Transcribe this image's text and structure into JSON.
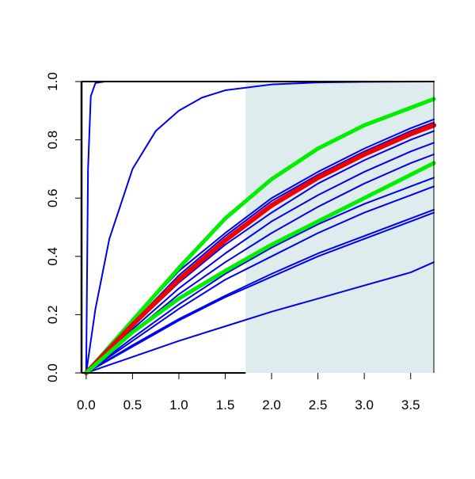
{
  "chart_data": {
    "type": "line",
    "title": "",
    "xlabel": "",
    "ylabel": "",
    "xlim": [
      -0.05,
      3.75
    ],
    "ylim": [
      0,
      1
    ],
    "x_ticks": [
      0,
      0.5,
      1,
      1.5,
      2,
      2.5,
      3,
      3.5
    ],
    "x_tick_labels": [
      "0.0",
      "0.5",
      "1.0",
      "1.5",
      "2.0",
      "2.5",
      "3.0",
      "3.5"
    ],
    "y_ticks": [
      0,
      0.2,
      0.4,
      0.6,
      0.8,
      1.0
    ],
    "y_tick_labels": [
      "0.0",
      "0.2",
      "0.4",
      "0.6",
      "0.8",
      "1.0"
    ],
    "shaded_region": {
      "x_start": 1.72,
      "x_end": 3.75,
      "color": "#dfeced"
    },
    "grid": false,
    "colors": {
      "blue": "#0000ee",
      "green": "#00ee00",
      "red": "#ee0000",
      "axis": "#000000"
    },
    "series": [
      {
        "color": "#0000ee",
        "width": 2,
        "x": [
          0,
          0.02,
          0.05,
          0.1,
          0.2,
          0.5,
          1,
          2,
          3.75
        ],
        "y": [
          0,
          0.7,
          0.95,
          0.995,
          1.0,
          1.0,
          1.0,
          1.0,
          1.0
        ]
      },
      {
        "color": "#0000ee",
        "width": 2,
        "x": [
          0,
          0.1,
          0.25,
          0.5,
          0.75,
          1,
          1.25,
          1.5,
          2,
          2.5,
          3,
          3.75
        ],
        "y": [
          0,
          0.22,
          0.46,
          0.7,
          0.83,
          0.9,
          0.945,
          0.97,
          0.99,
          0.997,
          0.999,
          1.0
        ]
      },
      {
        "color": "#0000ee",
        "width": 2,
        "x": [
          0,
          0.5,
          1,
          1.5,
          2,
          2.5,
          3,
          3.5,
          3.75
        ],
        "y": [
          0,
          0.18,
          0.35,
          0.48,
          0.6,
          0.69,
          0.77,
          0.84,
          0.87
        ]
      },
      {
        "color": "#0000ee",
        "width": 2,
        "x": [
          0,
          0.5,
          1,
          1.5,
          2,
          2.5,
          3,
          3.5,
          3.75
        ],
        "y": [
          0,
          0.17,
          0.335,
          0.47,
          0.59,
          0.68,
          0.76,
          0.83,
          0.86
        ]
      },
      {
        "color": "#0000ee",
        "width": 2,
        "x": [
          0,
          0.5,
          1,
          1.5,
          2,
          2.5,
          3,
          3.5,
          3.75
        ],
        "y": [
          0,
          0.16,
          0.31,
          0.44,
          0.55,
          0.65,
          0.73,
          0.8,
          0.83
        ]
      },
      {
        "color": "#0000ee",
        "width": 2,
        "x": [
          0,
          0.5,
          1,
          1.5,
          2,
          2.5,
          3,
          3.5,
          3.75
        ],
        "y": [
          0,
          0.15,
          0.29,
          0.41,
          0.52,
          0.61,
          0.69,
          0.76,
          0.79
        ]
      },
      {
        "color": "#0000ee",
        "width": 2,
        "x": [
          0,
          0.5,
          1,
          1.5,
          2,
          2.5,
          3,
          3.5,
          3.75
        ],
        "y": [
          0,
          0.14,
          0.27,
          0.38,
          0.48,
          0.57,
          0.65,
          0.72,
          0.75
        ]
      },
      {
        "color": "#0000ee",
        "width": 2,
        "x": [
          0,
          0.5,
          1,
          1.5,
          2,
          2.5,
          3,
          3.5,
          3.75
        ],
        "y": [
          0,
          0.12,
          0.235,
          0.34,
          0.43,
          0.51,
          0.58,
          0.64,
          0.67
        ]
      },
      {
        "color": "#0000ee",
        "width": 2,
        "x": [
          0,
          0.5,
          1,
          1.5,
          2,
          2.5,
          3,
          3.5,
          3.75
        ],
        "y": [
          0,
          0.11,
          0.22,
          0.32,
          0.4,
          0.48,
          0.55,
          0.61,
          0.64
        ]
      },
      {
        "color": "#0000ee",
        "width": 2,
        "x": [
          0,
          0.5,
          1,
          1.5,
          2,
          2.5,
          3,
          3.5,
          3.75
        ],
        "y": [
          0,
          0.095,
          0.185,
          0.265,
          0.34,
          0.41,
          0.47,
          0.53,
          0.56
        ]
      },
      {
        "color": "#0000ee",
        "width": 2,
        "x": [
          0,
          0.5,
          1,
          1.5,
          2,
          2.5,
          3,
          3.5,
          3.75
        ],
        "y": [
          0,
          0.09,
          0.18,
          0.26,
          0.33,
          0.4,
          0.46,
          0.52,
          0.55
        ]
      },
      {
        "color": "#0000ee",
        "width": 2,
        "x": [
          0,
          0.5,
          1,
          1.5,
          2,
          2.5,
          3,
          3.5,
          3.75
        ],
        "y": [
          0,
          0.055,
          0.11,
          0.16,
          0.21,
          0.255,
          0.3,
          0.345,
          0.38
        ]
      },
      {
        "color": "#00ee00",
        "width": 5,
        "x": [
          0,
          0.5,
          1,
          1.5,
          2,
          2.5,
          3,
          3.5,
          3.75
        ],
        "y": [
          0,
          0.18,
          0.36,
          0.53,
          0.665,
          0.77,
          0.85,
          0.91,
          0.94
        ]
      },
      {
        "color": "#ee0000",
        "width": 6,
        "x": [
          0,
          0.5,
          1,
          1.5,
          2,
          2.5,
          3,
          3.5,
          3.75
        ],
        "y": [
          0,
          0.165,
          0.32,
          0.455,
          0.575,
          0.67,
          0.75,
          0.82,
          0.85
        ]
      },
      {
        "color": "#00ee00",
        "width": 5,
        "x": [
          0,
          0.5,
          1,
          1.5,
          2,
          2.5,
          3,
          3.5,
          3.75
        ],
        "y": [
          0,
          0.14,
          0.255,
          0.35,
          0.44,
          0.52,
          0.6,
          0.68,
          0.72
        ]
      }
    ]
  }
}
